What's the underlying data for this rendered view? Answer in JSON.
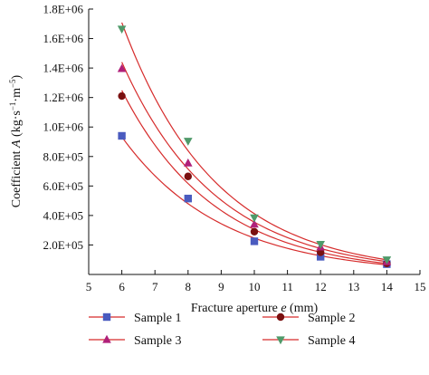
{
  "chart_data": {
    "type": "scatter",
    "xlabel_prefix": "Fracture aperture ",
    "xlabel_var": "e",
    "xlabel_suffix": " (mm)",
    "ylabel_prefix": "Coefficient ",
    "ylabel_var": "A",
    "ylabel_units": "(kg·s",
    "ylabel_sup1": "−1",
    "ylabel_mid": "·m",
    "ylabel_sup2": "−5",
    "ylabel_end": ")",
    "xlim": [
      5,
      15
    ],
    "ylim": [
      0,
      1800000
    ],
    "x_ticks": [
      5,
      6,
      7,
      8,
      9,
      10,
      11,
      12,
      13,
      14,
      15
    ],
    "x_tick_labels": [
      "5",
      "6",
      "7",
      "8",
      "9",
      "10",
      "11",
      "12",
      "13",
      "14",
      "15"
    ],
    "y_ticks": [
      200000,
      400000,
      600000,
      800000,
      1000000,
      1200000,
      1400000,
      1600000,
      1800000
    ],
    "y_tick_labels": [
      "2.0E+05",
      "4.0E+05",
      "6.0E+05",
      "8.0E+05",
      "1.0E+06",
      "1.2E+06",
      "1.4E+06",
      "1.6E+06",
      "1.8E+06"
    ],
    "grid": false,
    "legend_position": "bottom",
    "x": [
      6,
      8,
      10,
      12,
      14
    ],
    "series": [
      {
        "name": "Sample 1",
        "marker": "square",
        "marker_color": "#4a5bbf",
        "line_color": "#d62b2b",
        "values": [
          940000,
          515000,
          225000,
          120000,
          70000
        ]
      },
      {
        "name": "Sample 2",
        "marker": "circle",
        "marker_color": "#7a1010",
        "line_color": "#d62b2b",
        "values": [
          1210000,
          665000,
          290000,
          150000,
          75000
        ]
      },
      {
        "name": "Sample 3",
        "marker": "triangle-up",
        "marker_color": "#b0207a",
        "line_color": "#d62b2b",
        "values": [
          1395000,
          755000,
          340000,
          185000,
          85000
        ]
      },
      {
        "name": "Sample 4",
        "marker": "triangle-down",
        "marker_color": "#4f9a6a",
        "line_color": "#d62b2b",
        "values": [
          1665000,
          905000,
          385000,
          205000,
          100000
        ]
      }
    ]
  }
}
